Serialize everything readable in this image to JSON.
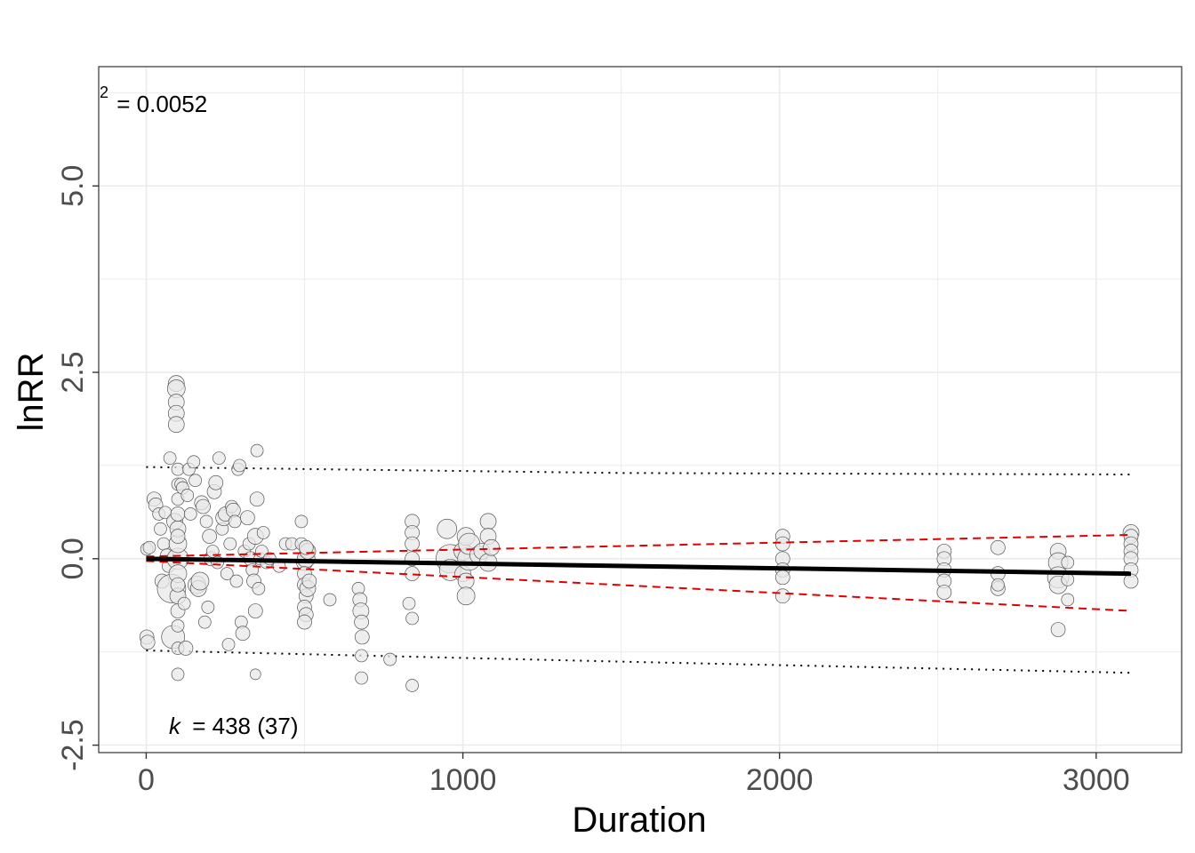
{
  "chart_data": {
    "type": "scatter",
    "title": "",
    "xlabel": "Duration",
    "ylabel": "lnRR",
    "xlim": [
      -150,
      3270
    ],
    "ylim": [
      -2.6,
      6.6
    ],
    "x_ticks": [
      0,
      1000,
      2000,
      3000
    ],
    "x_tick_labels": [
      "0",
      "1000",
      "2000",
      "3000"
    ],
    "y_ticks": [
      -2.5,
      0.0,
      2.5,
      5.0
    ],
    "y_tick_labels": [
      "-2.5",
      "0.0",
      "2.5",
      "5.0"
    ],
    "grid": true,
    "annotations": {
      "r2_label": "2",
      "r2_value": "= 0.0052",
      "k_symbol": "k",
      "k_value": "= 438 (37)"
    },
    "colors": {
      "point_fill": "#e8e8e8",
      "point_stroke": "#555555",
      "fit_line": "#000000",
      "ci_line": "#e00000",
      "pi_line": "#000000",
      "grid": "#ebebeb"
    },
    "fit": {
      "x": [
        0,
        3110
      ],
      "y": [
        0.0,
        -0.2
      ]
    },
    "confidence_interval": {
      "x": [
        0,
        3110
      ],
      "upper": [
        0.03,
        0.32
      ],
      "lower": [
        -0.03,
        -0.7
      ]
    },
    "prediction_interval": {
      "x": [
        0,
        1500,
        3110
      ],
      "upper": [
        1.23,
        1.15,
        1.13
      ],
      "lower": [
        -1.23,
        -1.38,
        -1.53
      ]
    },
    "points": [
      [
        2,
        -1.05,
        0.4
      ],
      [
        5,
        -1.12,
        0.4
      ],
      [
        2,
        0.13,
        0.3
      ],
      [
        10,
        0.15,
        0.3
      ],
      [
        25,
        0.8,
        0.4
      ],
      [
        30,
        0.72,
        0.4
      ],
      [
        40,
        0.6,
        0.3
      ],
      [
        45,
        0.4,
        0.3
      ],
      [
        50,
        -0.3,
        0.4
      ],
      [
        55,
        0.2,
        0.3
      ],
      [
        60,
        0.62,
        0.3
      ],
      [
        65,
        0.05,
        0.3
      ],
      [
        70,
        -0.1,
        0.3
      ],
      [
        80,
        -0.4,
        1.2
      ],
      [
        85,
        -1.05,
        0.9
      ],
      [
        90,
        0.5,
        0.5
      ],
      [
        95,
        2.35,
        0.5
      ],
      [
        95,
        2.28,
        0.6
      ],
      [
        95,
        2.1,
        0.5
      ],
      [
        95,
        1.95,
        0.5
      ],
      [
        95,
        1.8,
        0.5
      ],
      [
        100,
        0.0,
        0.8
      ],
      [
        100,
        0.2,
        0.6
      ],
      [
        100,
        -0.2,
        0.6
      ],
      [
        100,
        0.4,
        0.5
      ],
      [
        100,
        -0.5,
        0.5
      ],
      [
        100,
        0.6,
        0.4
      ],
      [
        100,
        -0.7,
        0.4
      ],
      [
        100,
        0.8,
        0.3
      ],
      [
        100,
        -0.9,
        0.3
      ],
      [
        100,
        1.0,
        0.3
      ],
      [
        100,
        -1.2,
        0.3
      ],
      [
        100,
        -1.55,
        0.3
      ],
      [
        100,
        1.2,
        0.3
      ],
      [
        100,
        0.3,
        0.4
      ],
      [
        100,
        -0.35,
        0.4
      ],
      [
        75,
        1.35,
        0.3
      ],
      [
        110,
        1.0,
        0.3
      ],
      [
        115,
        0.95,
        0.3
      ],
      [
        120,
        -0.6,
        0.3
      ],
      [
        125,
        -1.2,
        0.4
      ],
      [
        130,
        0.85,
        0.3
      ],
      [
        135,
        1.2,
        0.3
      ],
      [
        140,
        0.6,
        0.3
      ],
      [
        150,
        1.3,
        0.3
      ],
      [
        155,
        1.05,
        0.3
      ],
      [
        160,
        -0.35,
        0.6
      ],
      [
        165,
        -0.4,
        0.5
      ],
      [
        170,
        -0.3,
        0.6
      ],
      [
        175,
        0.75,
        0.4
      ],
      [
        180,
        0.7,
        0.4
      ],
      [
        185,
        -0.85,
        0.3
      ],
      [
        190,
        0.5,
        0.3
      ],
      [
        195,
        -0.65,
        0.3
      ],
      [
        200,
        0.3,
        0.4
      ],
      [
        205,
        0.0,
        0.4
      ],
      [
        210,
        0.1,
        0.3
      ],
      [
        215,
        0.9,
        0.4
      ],
      [
        220,
        1.02,
        0.4
      ],
      [
        225,
        -0.05,
        0.3
      ],
      [
        230,
        1.35,
        0.3
      ],
      [
        240,
        0.4,
        0.3
      ],
      [
        245,
        0.55,
        0.5
      ],
      [
        250,
        0.6,
        0.4
      ],
      [
        255,
        -0.2,
        0.3
      ],
      [
        260,
        -1.15,
        0.3
      ],
      [
        265,
        0.2,
        0.3
      ],
      [
        270,
        0.7,
        0.3
      ],
      [
        275,
        0.65,
        0.4
      ],
      [
        280,
        0.5,
        0.3
      ],
      [
        285,
        -0.3,
        0.3
      ],
      [
        290,
        1.2,
        0.3
      ],
      [
        295,
        1.25,
        0.3
      ],
      [
        300,
        -0.85,
        0.3
      ],
      [
        305,
        -1.0,
        0.4
      ],
      [
        310,
        0.1,
        0.3
      ],
      [
        320,
        0.55,
        0.4
      ],
      [
        325,
        0.2,
        0.3
      ],
      [
        330,
        0.0,
        0.4
      ],
      [
        335,
        -0.15,
        0.3
      ],
      [
        340,
        -0.3,
        0.4
      ],
      [
        345,
        0.3,
        0.5
      ],
      [
        350,
        0.8,
        0.4
      ],
      [
        350,
        1.45,
        0.3
      ],
      [
        345,
        -0.7,
        0.4
      ],
      [
        355,
        -0.4,
        0.3
      ],
      [
        345,
        -1.55,
        0.2
      ],
      [
        360,
        0.0,
        0.3
      ],
      [
        365,
        0.1,
        0.3
      ],
      [
        370,
        0.35,
        0.3
      ],
      [
        380,
        -0.05,
        0.3
      ],
      [
        390,
        0.0,
        0.3
      ],
      [
        420,
        -0.1,
        0.3
      ],
      [
        440,
        0.2,
        0.3
      ],
      [
        460,
        0.2,
        0.3
      ],
      [
        490,
        0.2,
        0.3
      ],
      [
        490,
        0.5,
        0.3
      ],
      [
        500,
        -0.05,
        0.5
      ],
      [
        505,
        0.0,
        0.6
      ],
      [
        500,
        -0.2,
        0.4
      ],
      [
        500,
        -0.35,
        0.4
      ],
      [
        505,
        -0.5,
        0.4
      ],
      [
        500,
        -0.65,
        0.4
      ],
      [
        505,
        -0.75,
        0.4
      ],
      [
        500,
        -0.85,
        0.4
      ],
      [
        510,
        0.1,
        0.4
      ],
      [
        510,
        -0.4,
        0.5
      ],
      [
        515,
        -0.3,
        0.4
      ],
      [
        510,
        0.1,
        0.5
      ],
      [
        505,
        0.15,
        0.4
      ],
      [
        580,
        -0.55,
        0.3
      ],
      [
        670,
        -0.4,
        0.3
      ],
      [
        675,
        -0.55,
        0.4
      ],
      [
        678,
        -0.7,
        0.5
      ],
      [
        680,
        -0.85,
        0.4
      ],
      [
        682,
        -1.05,
        0.4
      ],
      [
        680,
        -1.3,
        0.3
      ],
      [
        680,
        -1.6,
        0.3
      ],
      [
        770,
        -1.35,
        0.3
      ],
      [
        830,
        -0.6,
        0.3
      ],
      [
        840,
        0.5,
        0.4
      ],
      [
        840,
        0.35,
        0.4
      ],
      [
        840,
        0.2,
        0.4
      ],
      [
        840,
        0.0,
        0.4
      ],
      [
        840,
        -0.2,
        0.4
      ],
      [
        840,
        -0.8,
        0.3
      ],
      [
        840,
        -1.7,
        0.3
      ],
      [
        950,
        0.4,
        0.7
      ],
      [
        960,
        0.0,
        1.2
      ],
      [
        960,
        -0.15,
        0.8
      ],
      [
        1000,
        0.1,
        0.6
      ],
      [
        1000,
        -0.2,
        0.5
      ],
      [
        1010,
        0.3,
        0.6
      ],
      [
        1010,
        -0.3,
        0.5
      ],
      [
        1010,
        -0.5,
        0.6
      ],
      [
        1020,
        0.0,
        0.9
      ],
      [
        1020,
        0.2,
        0.8
      ],
      [
        1050,
        0.05,
        0.6
      ],
      [
        1060,
        0.1,
        0.5
      ],
      [
        1080,
        0.5,
        0.5
      ],
      [
        1080,
        0.3,
        0.5
      ],
      [
        1080,
        -0.05,
        0.6
      ],
      [
        1090,
        0.15,
        0.5
      ],
      [
        2010,
        0.3,
        0.4
      ],
      [
        2010,
        0.2,
        0.4
      ],
      [
        2010,
        0.0,
        0.4
      ],
      [
        2010,
        -0.15,
        0.4
      ],
      [
        2010,
        -0.25,
        0.4
      ],
      [
        2010,
        -0.5,
        0.4
      ],
      [
        2520,
        0.1,
        0.4
      ],
      [
        2520,
        0.0,
        0.4
      ],
      [
        2520,
        -0.15,
        0.4
      ],
      [
        2520,
        -0.3,
        0.4
      ],
      [
        2520,
        -0.45,
        0.4
      ],
      [
        2690,
        0.15,
        0.4
      ],
      [
        2690,
        -0.2,
        0.4
      ],
      [
        2690,
        -0.4,
        0.4
      ],
      [
        2690,
        -0.35,
        0.3
      ],
      [
        2880,
        0.1,
        0.5
      ],
      [
        2880,
        -0.05,
        0.7
      ],
      [
        2880,
        -0.25,
        0.8
      ],
      [
        2880,
        -0.35,
        0.6
      ],
      [
        2880,
        -0.95,
        0.4
      ],
      [
        2910,
        -0.05,
        0.3
      ],
      [
        2910,
        -0.28,
        0.3
      ],
      [
        2910,
        -0.55,
        0.3
      ],
      [
        3110,
        0.35,
        0.5
      ],
      [
        3110,
        0.3,
        0.4
      ],
      [
        3110,
        0.2,
        0.4
      ],
      [
        3110,
        0.1,
        0.4
      ],
      [
        3110,
        0.0,
        0.4
      ],
      [
        3110,
        -0.15,
        0.4
      ],
      [
        3110,
        -0.3,
        0.4
      ]
    ]
  }
}
